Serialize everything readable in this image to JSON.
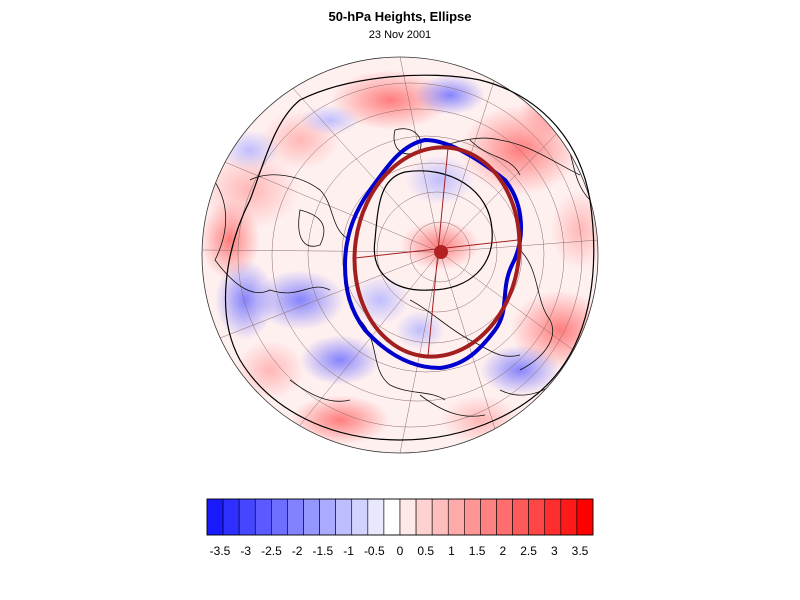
{
  "title": "50-hPa Heights, Ellipse",
  "subtitle": "23 Nov 2001",
  "colorbar": {
    "labels": [
      "-3.5",
      "-3",
      "-2.5",
      "-2",
      "-1.5",
      "-1",
      "-0.5",
      "0",
      "0.5",
      "1",
      "1.5",
      "2",
      "2.5",
      "3",
      "3.5"
    ],
    "colors": [
      "#1a1aff",
      "#2e2eff",
      "#4646ff",
      "#5a5aff",
      "#6e6eff",
      "#8282ff",
      "#9696ff",
      "#aaaaff",
      "#bebeff",
      "#d2d2ff",
      "#e8e8ff",
      "#ffffff",
      "#ffe8e8",
      "#ffd2d2",
      "#ffbebe",
      "#ffaaaa",
      "#ff9696",
      "#ff8282",
      "#ff6e6e",
      "#ff5a5a",
      "#ff4646",
      "#ff2e2e",
      "#ff1a1a",
      "#ff0000"
    ]
  },
  "map": {
    "projection": "north-polar-orthographic",
    "anomaly_blue_color": "#0000cc",
    "ellipse_color": "#a31f1f"
  }
}
